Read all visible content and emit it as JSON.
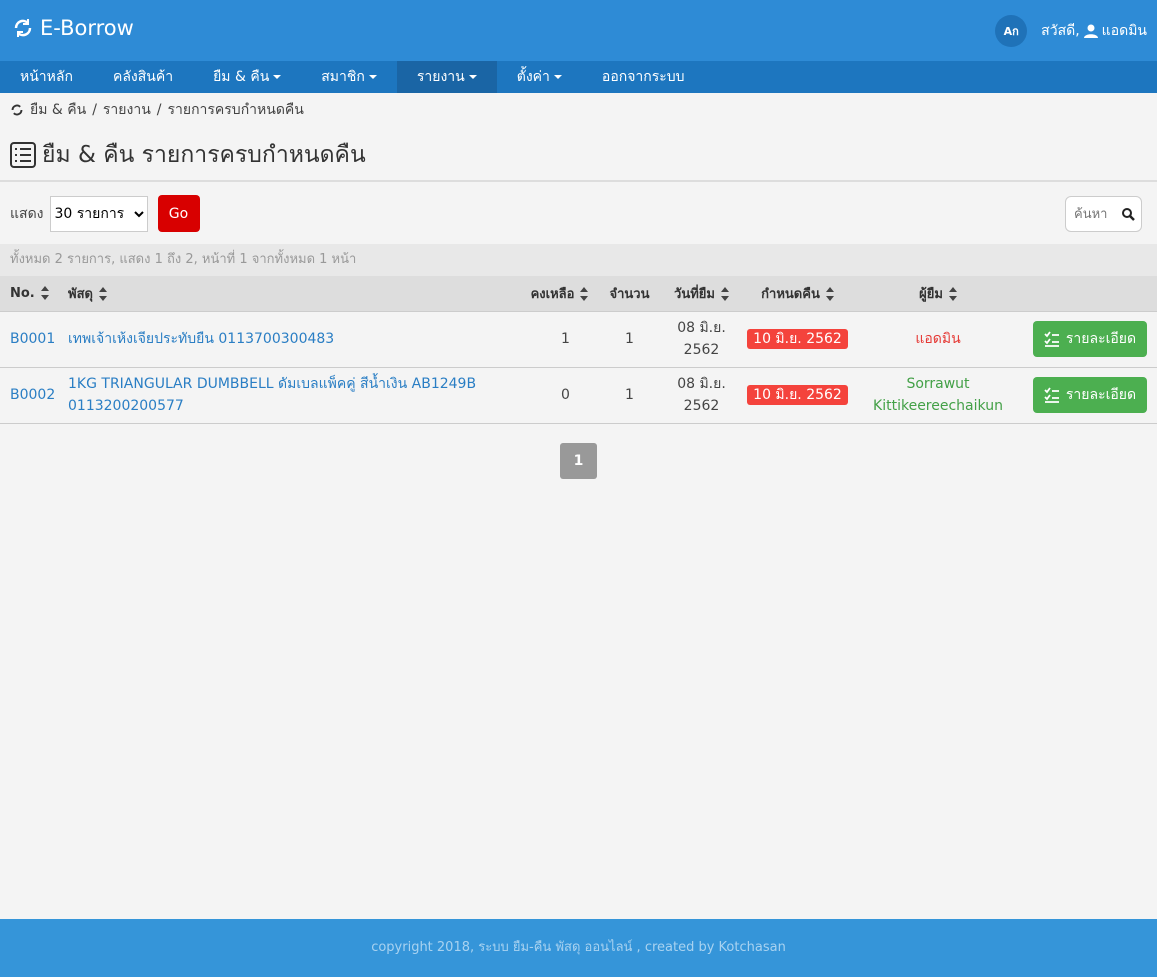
{
  "header": {
    "brand": "E-Borrow",
    "lang": "Aก",
    "greeting": "สวัสดี,",
    "user": "แอดมิน"
  },
  "nav": [
    {
      "label": "หน้าหลัก",
      "dropdown": false,
      "active": false
    },
    {
      "label": "คลังสินค้า",
      "dropdown": false,
      "active": false
    },
    {
      "label": "ยืม & คืน",
      "dropdown": true,
      "active": false
    },
    {
      "label": "สมาชิก",
      "dropdown": true,
      "active": false
    },
    {
      "label": "รายงาน",
      "dropdown": true,
      "active": true
    },
    {
      "label": "ตั้งค่า",
      "dropdown": true,
      "active": false
    },
    {
      "label": "ออกจากระบบ",
      "dropdown": false,
      "active": false
    }
  ],
  "breadcrumb": {
    "separator": "/",
    "items": [
      "ยืม & คืน",
      "รายงาน",
      "รายการครบกำหนดคืน"
    ]
  },
  "page_title": "ยืม & คืน รายการครบกำหนดคืน",
  "toolbar": {
    "show_label": "แสดง",
    "page_size": "30 รายการ",
    "go": "Go",
    "search_placeholder": "ค้นหา"
  },
  "summary": "ทั้งหมด 2 รายการ, แสดง 1 ถึง 2, หน้าที่ 1 จากทั้งหมด 1 หน้า",
  "table": {
    "columns": [
      {
        "label": "No.",
        "sortable": true
      },
      {
        "label": "พัสดุ",
        "sortable": true
      },
      {
        "label": "คงเหลือ",
        "sortable": true
      },
      {
        "label": "จำนวน",
        "sortable": false
      },
      {
        "label": "วันที่ยืม",
        "sortable": true
      },
      {
        "label": "กำหนดคืน",
        "sortable": true
      },
      {
        "label": "ผู้ยืม",
        "sortable": true
      }
    ],
    "rows": [
      {
        "no": "B0001",
        "item": "เทพเจ้าเห้งเจียประทับยืน 0113700300483",
        "remaining": 1,
        "quantity": 1,
        "borrow_date": "08 มิ.ย. 2562",
        "due_date": "10 มิ.ย. 2562",
        "borrower": "แอดมิน",
        "borrower_color": "#e53935",
        "action": "รายละเอียด"
      },
      {
        "no": "B0002",
        "item": "1KG TRIANGULAR DUMBBELL ดัมเบลแพ็คคู่ สีน้ำเงิน AB1249B 0113200200577",
        "remaining": 0,
        "quantity": 1,
        "borrow_date": "08 มิ.ย. 2562",
        "due_date": "10 มิ.ย. 2562",
        "borrower": "Sorrawut Kittikeereechaikun",
        "borrower_color": "#43a047",
        "action": "รายละเอียด"
      }
    ]
  },
  "pagination": [
    1
  ],
  "footer": "copyright 2018, ระบบ ยืม-คืน พัสดุ ออนไลน์ , created by Kotchasan"
}
